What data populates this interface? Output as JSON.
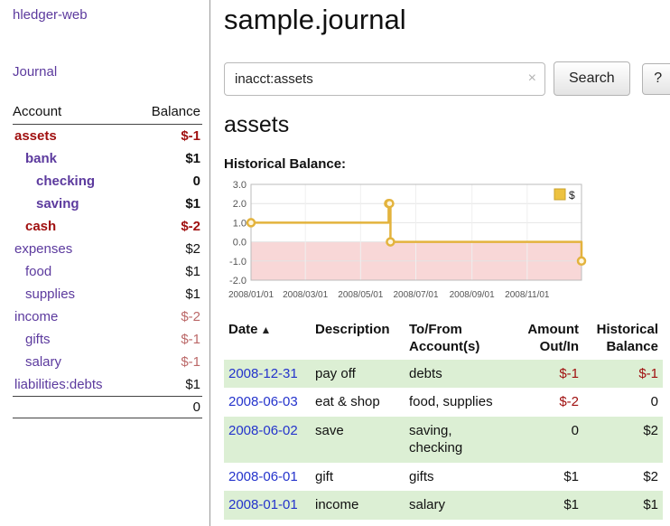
{
  "sidebar": {
    "brand": "hledger-web",
    "nav_journal": "Journal",
    "accounts_header": {
      "account": "Account",
      "balance": "Balance"
    },
    "accounts": [
      {
        "name": "assets",
        "balance": "$-1",
        "indent": 0,
        "bold": true,
        "negative": true
      },
      {
        "name": "bank",
        "balance": "$1",
        "indent": 1,
        "bold": true,
        "negative": false
      },
      {
        "name": "checking",
        "balance": "0",
        "indent": 2,
        "bold": true,
        "negative": false
      },
      {
        "name": "saving",
        "balance": "$1",
        "indent": 2,
        "bold": true,
        "negative": false
      },
      {
        "name": "cash",
        "balance": "$-2",
        "indent": 1,
        "bold": true,
        "negative": true
      },
      {
        "name": "expenses",
        "balance": "$2",
        "indent": 0,
        "bold": false,
        "negative": false
      },
      {
        "name": "food",
        "balance": "$1",
        "indent": 1,
        "bold": false,
        "negative": false
      },
      {
        "name": "supplies",
        "balance": "$1",
        "indent": 1,
        "bold": false,
        "negative": false
      },
      {
        "name": "income",
        "balance": "$-2",
        "indent": 0,
        "bold": false,
        "negative": true
      },
      {
        "name": "gifts",
        "balance": "$-1",
        "indent": 1,
        "bold": false,
        "negative": true
      },
      {
        "name": "salary",
        "balance": "$-1",
        "indent": 1,
        "bold": false,
        "negative": true
      },
      {
        "name": "liabilities:debts",
        "balance": "$1",
        "indent": 0,
        "bold": false,
        "negative": false
      }
    ],
    "total": "0"
  },
  "main": {
    "title": "sample.journal",
    "search": {
      "value": "inacct:assets",
      "placeholder": "",
      "clear_icon": "×",
      "button": "Search",
      "help": "?"
    },
    "section_title": "assets"
  },
  "chart_data": {
    "type": "line",
    "title": "Historical Balance:",
    "step": "after",
    "series": [
      {
        "name": "$",
        "points": [
          [
            "2008-01-01",
            1
          ],
          [
            "2008-06-01",
            2
          ],
          [
            "2008-06-02",
            2
          ],
          [
            "2008-06-03",
            0
          ],
          [
            "2008-12-31",
            -1
          ]
        ]
      }
    ],
    "x_domain": [
      "2008-01-01",
      "2008-12-31"
    ],
    "ylim": [
      -2,
      3
    ],
    "y_ticks": [
      3,
      2,
      1,
      0,
      -1,
      -2
    ],
    "x_ticks": [
      "2008/01/01",
      "2008/03/01",
      "2008/05/01",
      "2008/07/01",
      "2008/09/01",
      "2008/11/01"
    ],
    "legend_position": "top-right",
    "grid": true,
    "line_color": "#e3b33d",
    "marker_fill": "#fef6df",
    "legend_color": "#edc240",
    "negative_region_color": "#f8d7d7"
  },
  "register": {
    "sort_indicator": "▲",
    "headers": {
      "date": "Date",
      "description": "Description",
      "accounts": "To/From Account(s)",
      "amount": "Amount Out/In",
      "balance": "Historical Balance"
    },
    "rows": [
      {
        "date": "2008-12-31",
        "description": "pay off",
        "accounts": "debts",
        "amount": "$-1",
        "amount_neg": true,
        "balance": "$-1",
        "balance_neg": true
      },
      {
        "date": "2008-06-03",
        "description": "eat & shop",
        "accounts": "food, supplies",
        "amount": "$-2",
        "amount_neg": true,
        "balance": "0",
        "balance_neg": false
      },
      {
        "date": "2008-06-02",
        "description": "save",
        "accounts": "saving, checking",
        "amount": "0",
        "amount_neg": false,
        "balance": "$2",
        "balance_neg": false
      },
      {
        "date": "2008-06-01",
        "description": "gift",
        "accounts": "gifts",
        "amount": "$1",
        "amount_neg": false,
        "balance": "$2",
        "balance_neg": false
      },
      {
        "date": "2008-01-01",
        "description": "income",
        "accounts": "salary",
        "amount": "$1",
        "amount_neg": false,
        "balance": "$1",
        "balance_neg": false
      }
    ]
  },
  "colors": {
    "link_purple": "#5c3a9e",
    "date_blue": "#2433cc",
    "negative": "#a01010",
    "negative_soft": "#bb6868",
    "row_green": "#dcefd4",
    "chart_line": "#e3b33d",
    "chart_negative_fill": "#f8d7d7",
    "legend_yellow": "#edc240"
  }
}
